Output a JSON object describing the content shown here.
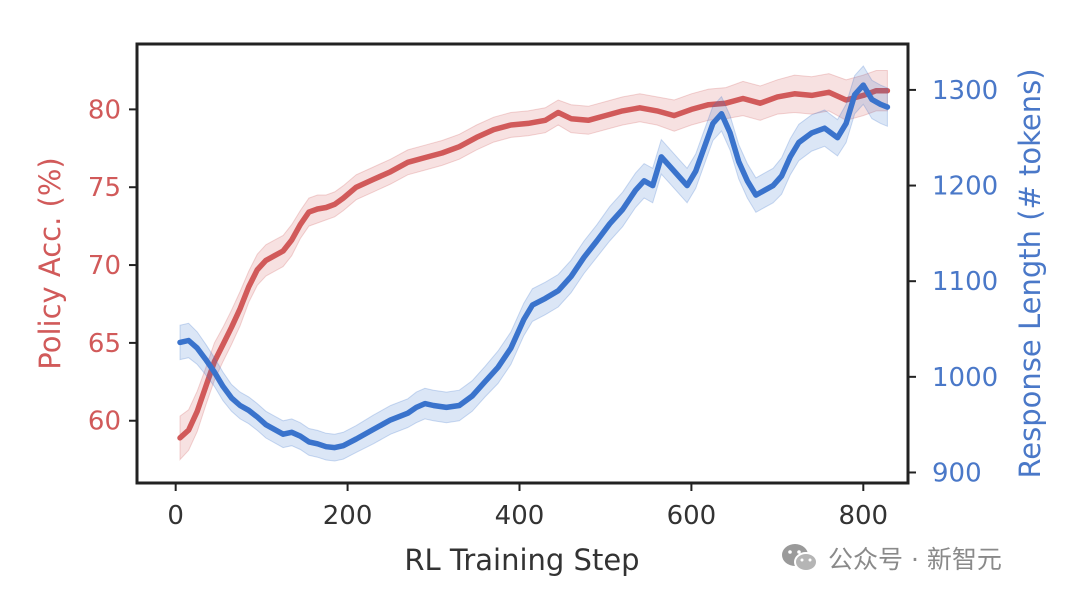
{
  "chart_data": {
    "type": "line",
    "title": "",
    "xlabel": "RL Training Step",
    "xlim": [
      -45,
      852
    ],
    "xticks": [
      0,
      200,
      400,
      600,
      800
    ],
    "grid": false,
    "legend": "none",
    "colors": {
      "left": "#d15a5a",
      "right": "#3a73cc",
      "left_text": "#d15a5a",
      "right_text": "#4a78c8"
    },
    "y_left": {
      "label": "Policy Acc. (%)",
      "lim": [
        56.0,
        84.2
      ],
      "ticks": [
        60,
        65,
        70,
        75,
        80
      ]
    },
    "y_right": {
      "label": "Response Length (# tokens)",
      "lim": [
        889,
        1348
      ],
      "ticks": [
        900,
        1000,
        1100,
        1200,
        1300
      ]
    },
    "series": [
      {
        "axis": "left",
        "x": [
          5,
          15,
          25,
          35,
          45,
          55,
          65,
          75,
          85,
          95,
          105,
          115,
          125,
          135,
          145,
          155,
          165,
          175,
          185,
          195,
          210,
          230,
          250,
          270,
          290,
          310,
          330,
          350,
          370,
          390,
          410,
          430,
          445,
          460,
          480,
          500,
          520,
          540,
          560,
          580,
          600,
          620,
          640,
          660,
          680,
          700,
          720,
          740,
          760,
          780,
          800,
          815,
          828
        ],
        "y": [
          58.9,
          59.4,
          60.6,
          62.2,
          63.8,
          64.9,
          66.0,
          67.2,
          68.6,
          69.7,
          70.3,
          70.6,
          70.9,
          71.6,
          72.6,
          73.4,
          73.6,
          73.7,
          73.9,
          74.3,
          75.0,
          75.5,
          76.0,
          76.6,
          76.9,
          77.2,
          77.6,
          78.2,
          78.7,
          79.0,
          79.1,
          79.3,
          79.8,
          79.4,
          79.3,
          79.6,
          79.9,
          80.1,
          79.9,
          79.6,
          80.0,
          80.3,
          80.4,
          80.7,
          80.4,
          80.8,
          81.0,
          80.9,
          81.1,
          80.6,
          80.9,
          81.2,
          81.2
        ],
        "band": [
          1.4,
          1.3,
          1.3,
          1.2,
          1.2,
          1.1,
          1.1,
          1.1,
          1.0,
          1.0,
          1.0,
          1.0,
          1.0,
          1.0,
          0.9,
          0.9,
          0.9,
          0.8,
          0.8,
          0.8,
          0.8,
          0.8,
          0.8,
          0.8,
          0.8,
          0.8,
          0.8,
          0.8,
          0.8,
          0.8,
          0.8,
          0.8,
          0.8,
          0.9,
          0.9,
          0.9,
          0.9,
          0.9,
          0.9,
          1.0,
          1.0,
          1.0,
          1.0,
          1.1,
          1.1,
          1.1,
          1.2,
          1.2,
          1.2,
          1.3,
          1.3,
          1.3,
          1.3
        ]
      },
      {
        "axis": "right",
        "x": [
          5,
          15,
          25,
          35,
          45,
          55,
          65,
          75,
          85,
          95,
          105,
          115,
          125,
          135,
          145,
          155,
          165,
          175,
          185,
          195,
          210,
          230,
          250,
          270,
          280,
          290,
          300,
          315,
          330,
          345,
          360,
          375,
          390,
          405,
          415,
          430,
          445,
          460,
          475,
          490,
          505,
          520,
          535,
          545,
          555,
          565,
          575,
          585,
          595,
          605,
          615,
          625,
          635,
          645,
          655,
          665,
          675,
          685,
          695,
          705,
          715,
          725,
          740,
          755,
          770,
          780,
          790,
          800,
          810,
          820,
          828
        ],
        "y": [
          1036,
          1038,
          1030,
          1018,
          1005,
          990,
          978,
          970,
          965,
          958,
          950,
          945,
          940,
          942,
          938,
          932,
          930,
          927,
          926,
          928,
          935,
          945,
          955,
          962,
          968,
          972,
          970,
          968,
          970,
          980,
          995,
          1010,
          1030,
          1060,
          1075,
          1082,
          1090,
          1105,
          1125,
          1142,
          1160,
          1175,
          1195,
          1205,
          1200,
          1230,
          1220,
          1210,
          1200,
          1215,
          1240,
          1265,
          1275,
          1255,
          1225,
          1205,
          1190,
          1195,
          1200,
          1210,
          1230,
          1245,
          1255,
          1260,
          1250,
          1265,
          1295,
          1305,
          1290,
          1285,
          1282
        ],
        "band": [
          18,
          18,
          17,
          16,
          15,
          15,
          14,
          14,
          14,
          14,
          14,
          14,
          14,
          14,
          14,
          14,
          14,
          14,
          14,
          14,
          14,
          15,
          15,
          15,
          16,
          16,
          16,
          16,
          16,
          16,
          16,
          17,
          17,
          17,
          17,
          17,
          17,
          17,
          17,
          17,
          18,
          18,
          18,
          18,
          18,
          18,
          18,
          18,
          18,
          18,
          18,
          18,
          18,
          18,
          18,
          18,
          18,
          18,
          18,
          19,
          19,
          19,
          19,
          19,
          19,
          20,
          20,
          20,
          20,
          20,
          20
        ]
      }
    ]
  },
  "watermark": {
    "text": "公众号 · 新智元",
    "icon": "wechat-icon"
  }
}
